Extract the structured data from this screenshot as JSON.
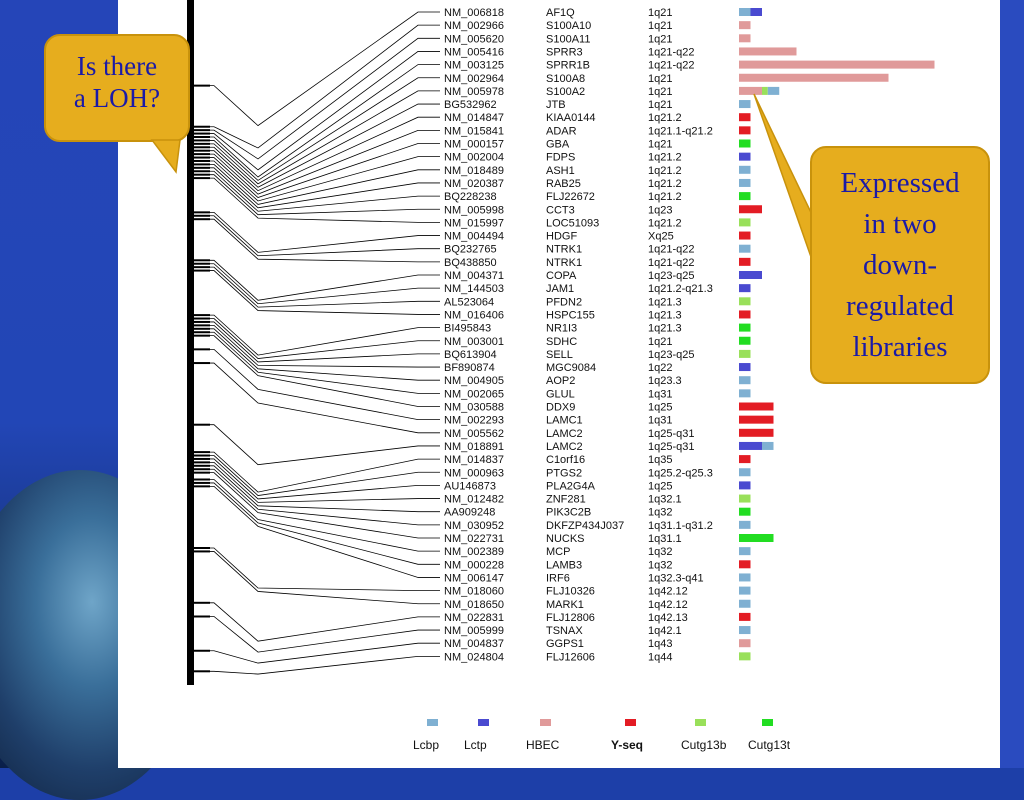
{
  "rows": [
    {
      "acc": "NM_006818",
      "gene": "AF1Q",
      "loc": "1q21",
      "bars": [
        [
          "Lcbp",
          1
        ],
        [
          "Lctp",
          1
        ]
      ]
    },
    {
      "acc": "NM_002966",
      "gene": "S100A10",
      "loc": "1q21",
      "bars": [
        [
          "HBEC",
          1
        ]
      ]
    },
    {
      "acc": "NM_005620",
      "gene": "S100A11",
      "loc": "1q21",
      "bars": [
        [
          "HBEC",
          1
        ]
      ]
    },
    {
      "acc": "NM_005416",
      "gene": "SPRR3",
      "loc": "1q21-q22",
      "bars": [
        [
          "HBEC",
          5
        ]
      ]
    },
    {
      "acc": "NM_003125",
      "gene": "SPRR1B",
      "loc": "1q21-q22",
      "bars": [
        [
          "HBEC",
          17
        ]
      ]
    },
    {
      "acc": "NM_002964",
      "gene": "S100A8",
      "loc": "1q21",
      "bars": [
        [
          "HBEC",
          13
        ]
      ]
    },
    {
      "acc": "NM_005978",
      "gene": "S100A2",
      "loc": "1q21",
      "bars": [
        [
          "HBEC",
          2
        ],
        [
          "Cutg13b",
          0.5
        ],
        [
          "Lcbp",
          1
        ]
      ]
    },
    {
      "acc": "BG532962",
      "gene": "JTB",
      "loc": "1q21",
      "bars": [
        [
          "Lcbp",
          1
        ]
      ]
    },
    {
      "acc": "NM_014847",
      "gene": "KIAA0144",
      "loc": "1q21.2",
      "bars": [
        [
          "Y-seq",
          1
        ]
      ]
    },
    {
      "acc": "NM_015841",
      "gene": "ADAR",
      "loc": "1q21.1-q21.2",
      "bars": [
        [
          "Y-seq",
          1
        ]
      ]
    },
    {
      "acc": "NM_000157",
      "gene": "GBA",
      "loc": "1q21",
      "bars": [
        [
          "Cutg13t",
          1
        ]
      ]
    },
    {
      "acc": "NM_002004",
      "gene": "FDPS",
      "loc": "1q21.2",
      "bars": [
        [
          "Lctp",
          1
        ]
      ]
    },
    {
      "acc": "NM_018489",
      "gene": "ASH1",
      "loc": "1q21.2",
      "bars": [
        [
          "Lcbp",
          1
        ]
      ]
    },
    {
      "acc": "NM_020387",
      "gene": "RAB25",
      "loc": "1q21.2",
      "bars": [
        [
          "Lcbp",
          1
        ]
      ]
    },
    {
      "acc": "BQ228238",
      "gene": "FLJ22672",
      "loc": "1q21.2",
      "bars": [
        [
          "Cutg13t",
          1
        ]
      ]
    },
    {
      "acc": "NM_005998",
      "gene": "CCT3",
      "loc": "1q23",
      "bars": [
        [
          "Y-seq",
          2
        ]
      ]
    },
    {
      "acc": "NM_015997",
      "gene": "LOC51093",
      "loc": "1q21.2",
      "bars": [
        [
          "Cutg13b",
          1
        ]
      ]
    },
    {
      "acc": "NM_004494",
      "gene": "HDGF",
      "loc": "Xq25",
      "bars": [
        [
          "Y-seq",
          1
        ]
      ]
    },
    {
      "acc": "BQ232765",
      "gene": "NTRK1",
      "loc": "1q21-q22",
      "bars": [
        [
          "Lcbp",
          1
        ]
      ]
    },
    {
      "acc": "BQ438850",
      "gene": "NTRK1",
      "loc": "1q21-q22",
      "bars": [
        [
          "Y-seq",
          1
        ]
      ]
    },
    {
      "acc": "NM_004371",
      "gene": "COPA",
      "loc": "1q23-q25",
      "bars": [
        [
          "Lctp",
          2
        ]
      ]
    },
    {
      "acc": "NM_144503",
      "gene": "JAM1",
      "loc": "1q21.2-q21.3",
      "bars": [
        [
          "Lctp",
          1
        ]
      ]
    },
    {
      "acc": "AL523064",
      "gene": "PFDN2",
      "loc": "1q21.3",
      "bars": [
        [
          "Cutg13b",
          1
        ]
      ]
    },
    {
      "acc": "NM_016406",
      "gene": "HSPC155",
      "loc": "1q21.3",
      "bars": [
        [
          "Y-seq",
          1
        ]
      ]
    },
    {
      "acc": "BI495843",
      "gene": "NR1I3",
      "loc": "1q21.3",
      "bars": [
        [
          "Cutg13t",
          1
        ]
      ]
    },
    {
      "acc": "NM_003001",
      "gene": "SDHC",
      "loc": "1q21",
      "bars": [
        [
          "Cutg13t",
          1
        ]
      ]
    },
    {
      "acc": "BQ613904",
      "gene": "SELL",
      "loc": "1q23-q25",
      "bars": [
        [
          "Cutg13b",
          1
        ]
      ]
    },
    {
      "acc": "BF890874",
      "gene": "MGC9084",
      "loc": "1q22",
      "bars": [
        [
          "Lctp",
          1
        ]
      ]
    },
    {
      "acc": "NM_004905",
      "gene": "AOP2",
      "loc": "1q23.3",
      "bars": [
        [
          "Lcbp",
          1
        ]
      ]
    },
    {
      "acc": "NM_002065",
      "gene": "GLUL",
      "loc": "1q31",
      "bars": [
        [
          "Lcbp",
          1
        ]
      ]
    },
    {
      "acc": "NM_030588",
      "gene": "DDX9",
      "loc": "1q25",
      "bars": [
        [
          "Y-seq",
          3
        ]
      ]
    },
    {
      "acc": "NM_002293",
      "gene": "LAMC1",
      "loc": "1q31",
      "bars": [
        [
          "Y-seq",
          3
        ]
      ]
    },
    {
      "acc": "NM_005562",
      "gene": "LAMC2",
      "loc": "1q25-q31",
      "bars": [
        [
          "Y-seq",
          3
        ]
      ]
    },
    {
      "acc": "NM_018891",
      "gene": "LAMC2",
      "loc": "1q25-q31",
      "bars": [
        [
          "Lctp",
          2
        ],
        [
          "Lcbp",
          1
        ]
      ]
    },
    {
      "acc": "NM_014837",
      "gene": "C1orf16",
      "loc": "1q35",
      "bars": [
        [
          "Y-seq",
          1
        ]
      ]
    },
    {
      "acc": "NM_000963",
      "gene": "PTGS2",
      "loc": "1q25.2-q25.3",
      "bars": [
        [
          "Lcbp",
          1
        ]
      ]
    },
    {
      "acc": "AU146873",
      "gene": "PLA2G4A",
      "loc": "1q25",
      "bars": [
        [
          "Lctp",
          1
        ]
      ]
    },
    {
      "acc": "NM_012482",
      "gene": "ZNF281",
      "loc": "1q32.1",
      "bars": [
        [
          "Cutg13b",
          1
        ]
      ]
    },
    {
      "acc": "AA909248",
      "gene": "PIK3C2B",
      "loc": "1q32",
      "bars": [
        [
          "Cutg13t",
          1
        ]
      ]
    },
    {
      "acc": "NM_030952",
      "gene": "DKFZP434J037",
      "loc": "1q31.1-q31.2",
      "bars": [
        [
          "Lcbp",
          1
        ]
      ]
    },
    {
      "acc": "NM_022731",
      "gene": "NUCKS",
      "loc": "1q31.1",
      "bars": [
        [
          "Cutg13t",
          3
        ]
      ]
    },
    {
      "acc": "NM_002389",
      "gene": "MCP",
      "loc": "1q32",
      "bars": [
        [
          "Lcbp",
          1
        ]
      ]
    },
    {
      "acc": "NM_000228",
      "gene": "LAMB3",
      "loc": "1q32",
      "bars": [
        [
          "Y-seq",
          1
        ]
      ]
    },
    {
      "acc": "NM_006147",
      "gene": "IRF6",
      "loc": "1q32.3-q41",
      "bars": [
        [
          "Lcbp",
          1
        ]
      ]
    },
    {
      "acc": "NM_018060",
      "gene": "FLJ10326",
      "loc": "1q42.12",
      "bars": [
        [
          "Lcbp",
          1
        ]
      ]
    },
    {
      "acc": "NM_018650",
      "gene": "MARK1",
      "loc": "1q42.12",
      "bars": [
        [
          "Lcbp",
          1
        ]
      ]
    },
    {
      "acc": "NM_022831",
      "gene": "FLJ12806",
      "loc": "1q42.13",
      "bars": [
        [
          "Y-seq",
          1
        ]
      ]
    },
    {
      "acc": "NM_005999",
      "gene": "TSNAX",
      "loc": "1q42.1",
      "bars": [
        [
          "Lcbp",
          1
        ]
      ]
    },
    {
      "acc": "NM_004837",
      "gene": "GGPS1",
      "loc": "1q43",
      "bars": [
        [
          "HBEC",
          1
        ]
      ]
    },
    {
      "acc": "NM_024804",
      "gene": "FLJ12606",
      "loc": "1q44",
      "bars": [
        [
          "Cutg13b",
          1
        ]
      ]
    }
  ],
  "legend": [
    {
      "name": "Lcbp",
      "color": "#7fb0d2"
    },
    {
      "name": "Lctp",
      "color": "#4a4ad0"
    },
    {
      "name": "HBEC",
      "color": "#e09a9a"
    },
    {
      "name": "Y-seq",
      "color": "#e31c24"
    },
    {
      "name": "Cutg13b",
      "color": "#99e05a"
    },
    {
      "name": "Cutg13t",
      "color": "#22dd22"
    }
  ],
  "marks": [
    0.125,
    0.185,
    0.19,
    0.195,
    0.2,
    0.205,
    0.21,
    0.215,
    0.22,
    0.225,
    0.23,
    0.235,
    0.24,
    0.245,
    0.25,
    0.255,
    0.26,
    0.31,
    0.315,
    0.32,
    0.38,
    0.385,
    0.39,
    0.395,
    0.46,
    0.465,
    0.47,
    0.475,
    0.48,
    0.485,
    0.49,
    0.51,
    0.53,
    0.62,
    0.66,
    0.665,
    0.67,
    0.675,
    0.68,
    0.685,
    0.69,
    0.7,
    0.705,
    0.71,
    0.8,
    0.805,
    0.88,
    0.9,
    0.95,
    0.98
  ],
  "callouts": {
    "loh": [
      "Is there",
      "a LOH?"
    ],
    "expressed": [
      "Expressed",
      "in two",
      "down-",
      "regulated",
      "libraries"
    ]
  }
}
